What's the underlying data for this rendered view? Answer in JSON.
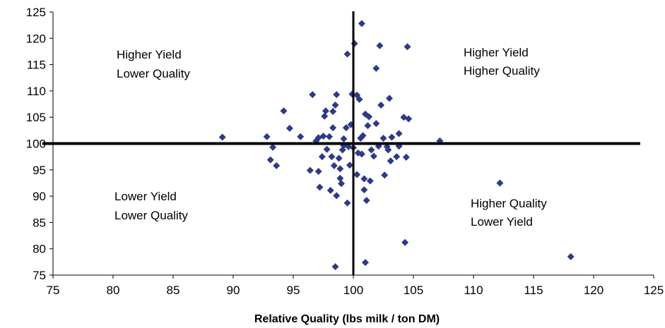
{
  "chart_data": {
    "type": "scatter",
    "title": "",
    "xlabel": "Relative Quality (lbs milk / ton DM)",
    "ylabel": "",
    "xlim": [
      75,
      125
    ],
    "ylim": [
      75,
      125
    ],
    "x_ticks": [
      "75",
      "80",
      "85",
      "90",
      "95",
      "100",
      "105",
      "110",
      "115",
      "120",
      "125"
    ],
    "y_ticks": [
      "75",
      "80",
      "85",
      "90",
      "95",
      "100",
      "105",
      "110",
      "115",
      "120",
      "125"
    ],
    "grid": false,
    "legend": "none",
    "reference_lines": {
      "x": 100,
      "y": 100
    },
    "marker": {
      "shape": "diamond",
      "color": "#2E3A87"
    },
    "quadrant_labels": {
      "upper_left": [
        "Higher Yield",
        "Lower Quality"
      ],
      "upper_right": [
        "Higher Yield",
        "Higher Quality"
      ],
      "lower_left": [
        "Lower Yield",
        "Lower Quality"
      ],
      "lower_right": [
        "Higher Quality",
        "Lower Yield"
      ]
    },
    "points": [
      [
        89.1,
        101.2
      ],
      [
        92.8,
        101.3
      ],
      [
        93.3,
        99.3
      ],
      [
        93.1,
        96.9
      ],
      [
        93.6,
        95.8
      ],
      [
        94.2,
        106.2
      ],
      [
        94.7,
        102.9
      ],
      [
        95.6,
        101.3
      ],
      [
        96.4,
        94.9
      ],
      [
        96.6,
        109.3
      ],
      [
        96.9,
        100.5
      ],
      [
        97.1,
        101.1
      ],
      [
        97.2,
        91.7
      ],
      [
        97.1,
        94.7
      ],
      [
        97.4,
        97.5
      ],
      [
        97.5,
        101.4
      ],
      [
        97.6,
        105.2
      ],
      [
        97.7,
        106.2
      ],
      [
        97.8,
        98.9
      ],
      [
        98.0,
        101.3
      ],
      [
        98.1,
        91.1
      ],
      [
        98.2,
        97.5
      ],
      [
        98.3,
        106.1
      ],
      [
        98.3,
        103.0
      ],
      [
        98.4,
        95.8
      ],
      [
        98.5,
        107.3
      ],
      [
        98.6,
        109.3
      ],
      [
        98.6,
        90.1
      ],
      [
        98.5,
        76.6
      ],
      [
        98.8,
        97.2
      ],
      [
        98.9,
        95.2
      ],
      [
        98.9,
        93.4
      ],
      [
        99.0,
        92.4
      ],
      [
        99.1,
        98.8
      ],
      [
        99.2,
        99.6
      ],
      [
        99.2,
        100.9
      ],
      [
        99.4,
        103.0
      ],
      [
        99.5,
        88.7
      ],
      [
        99.5,
        117.0
      ],
      [
        99.6,
        99.4
      ],
      [
        99.7,
        95.9
      ],
      [
        99.8,
        103.6
      ],
      [
        99.9,
        109.4
      ],
      [
        100.0,
        99.2
      ],
      [
        100.1,
        119.0
      ],
      [
        100.3,
        109.2
      ],
      [
        100.3,
        94.1
      ],
      [
        100.4,
        98.2
      ],
      [
        100.5,
        108.4
      ],
      [
        100.6,
        101.0
      ],
      [
        100.7,
        122.8
      ],
      [
        100.7,
        98.0
      ],
      [
        100.8,
        101.5
      ],
      [
        100.9,
        93.3
      ],
      [
        100.9,
        91.2
      ],
      [
        101.0,
        105.6
      ],
      [
        101.0,
        77.4
      ],
      [
        101.1,
        89.2
      ],
      [
        101.2,
        103.4
      ],
      [
        101.3,
        105.1
      ],
      [
        101.4,
        92.9
      ],
      [
        101.5,
        98.8
      ],
      [
        101.7,
        97.6
      ],
      [
        101.9,
        114.3
      ],
      [
        101.9,
        103.8
      ],
      [
        102.1,
        99.5
      ],
      [
        102.2,
        118.6
      ],
      [
        102.3,
        107.3
      ],
      [
        102.5,
        101.0
      ],
      [
        102.6,
        94.0
      ],
      [
        102.8,
        99.4
      ],
      [
        102.9,
        98.8
      ],
      [
        103.0,
        108.6
      ],
      [
        103.1,
        96.7
      ],
      [
        103.2,
        101.2
      ],
      [
        103.6,
        97.5
      ],
      [
        103.8,
        99.5
      ],
      [
        103.8,
        101.9
      ],
      [
        104.2,
        105.0
      ],
      [
        104.3,
        81.2
      ],
      [
        104.4,
        97.4
      ],
      [
        104.5,
        118.4
      ],
      [
        104.6,
        104.7
      ],
      [
        107.2,
        100.5
      ],
      [
        112.2,
        92.5
      ],
      [
        118.1,
        78.5
      ]
    ]
  }
}
